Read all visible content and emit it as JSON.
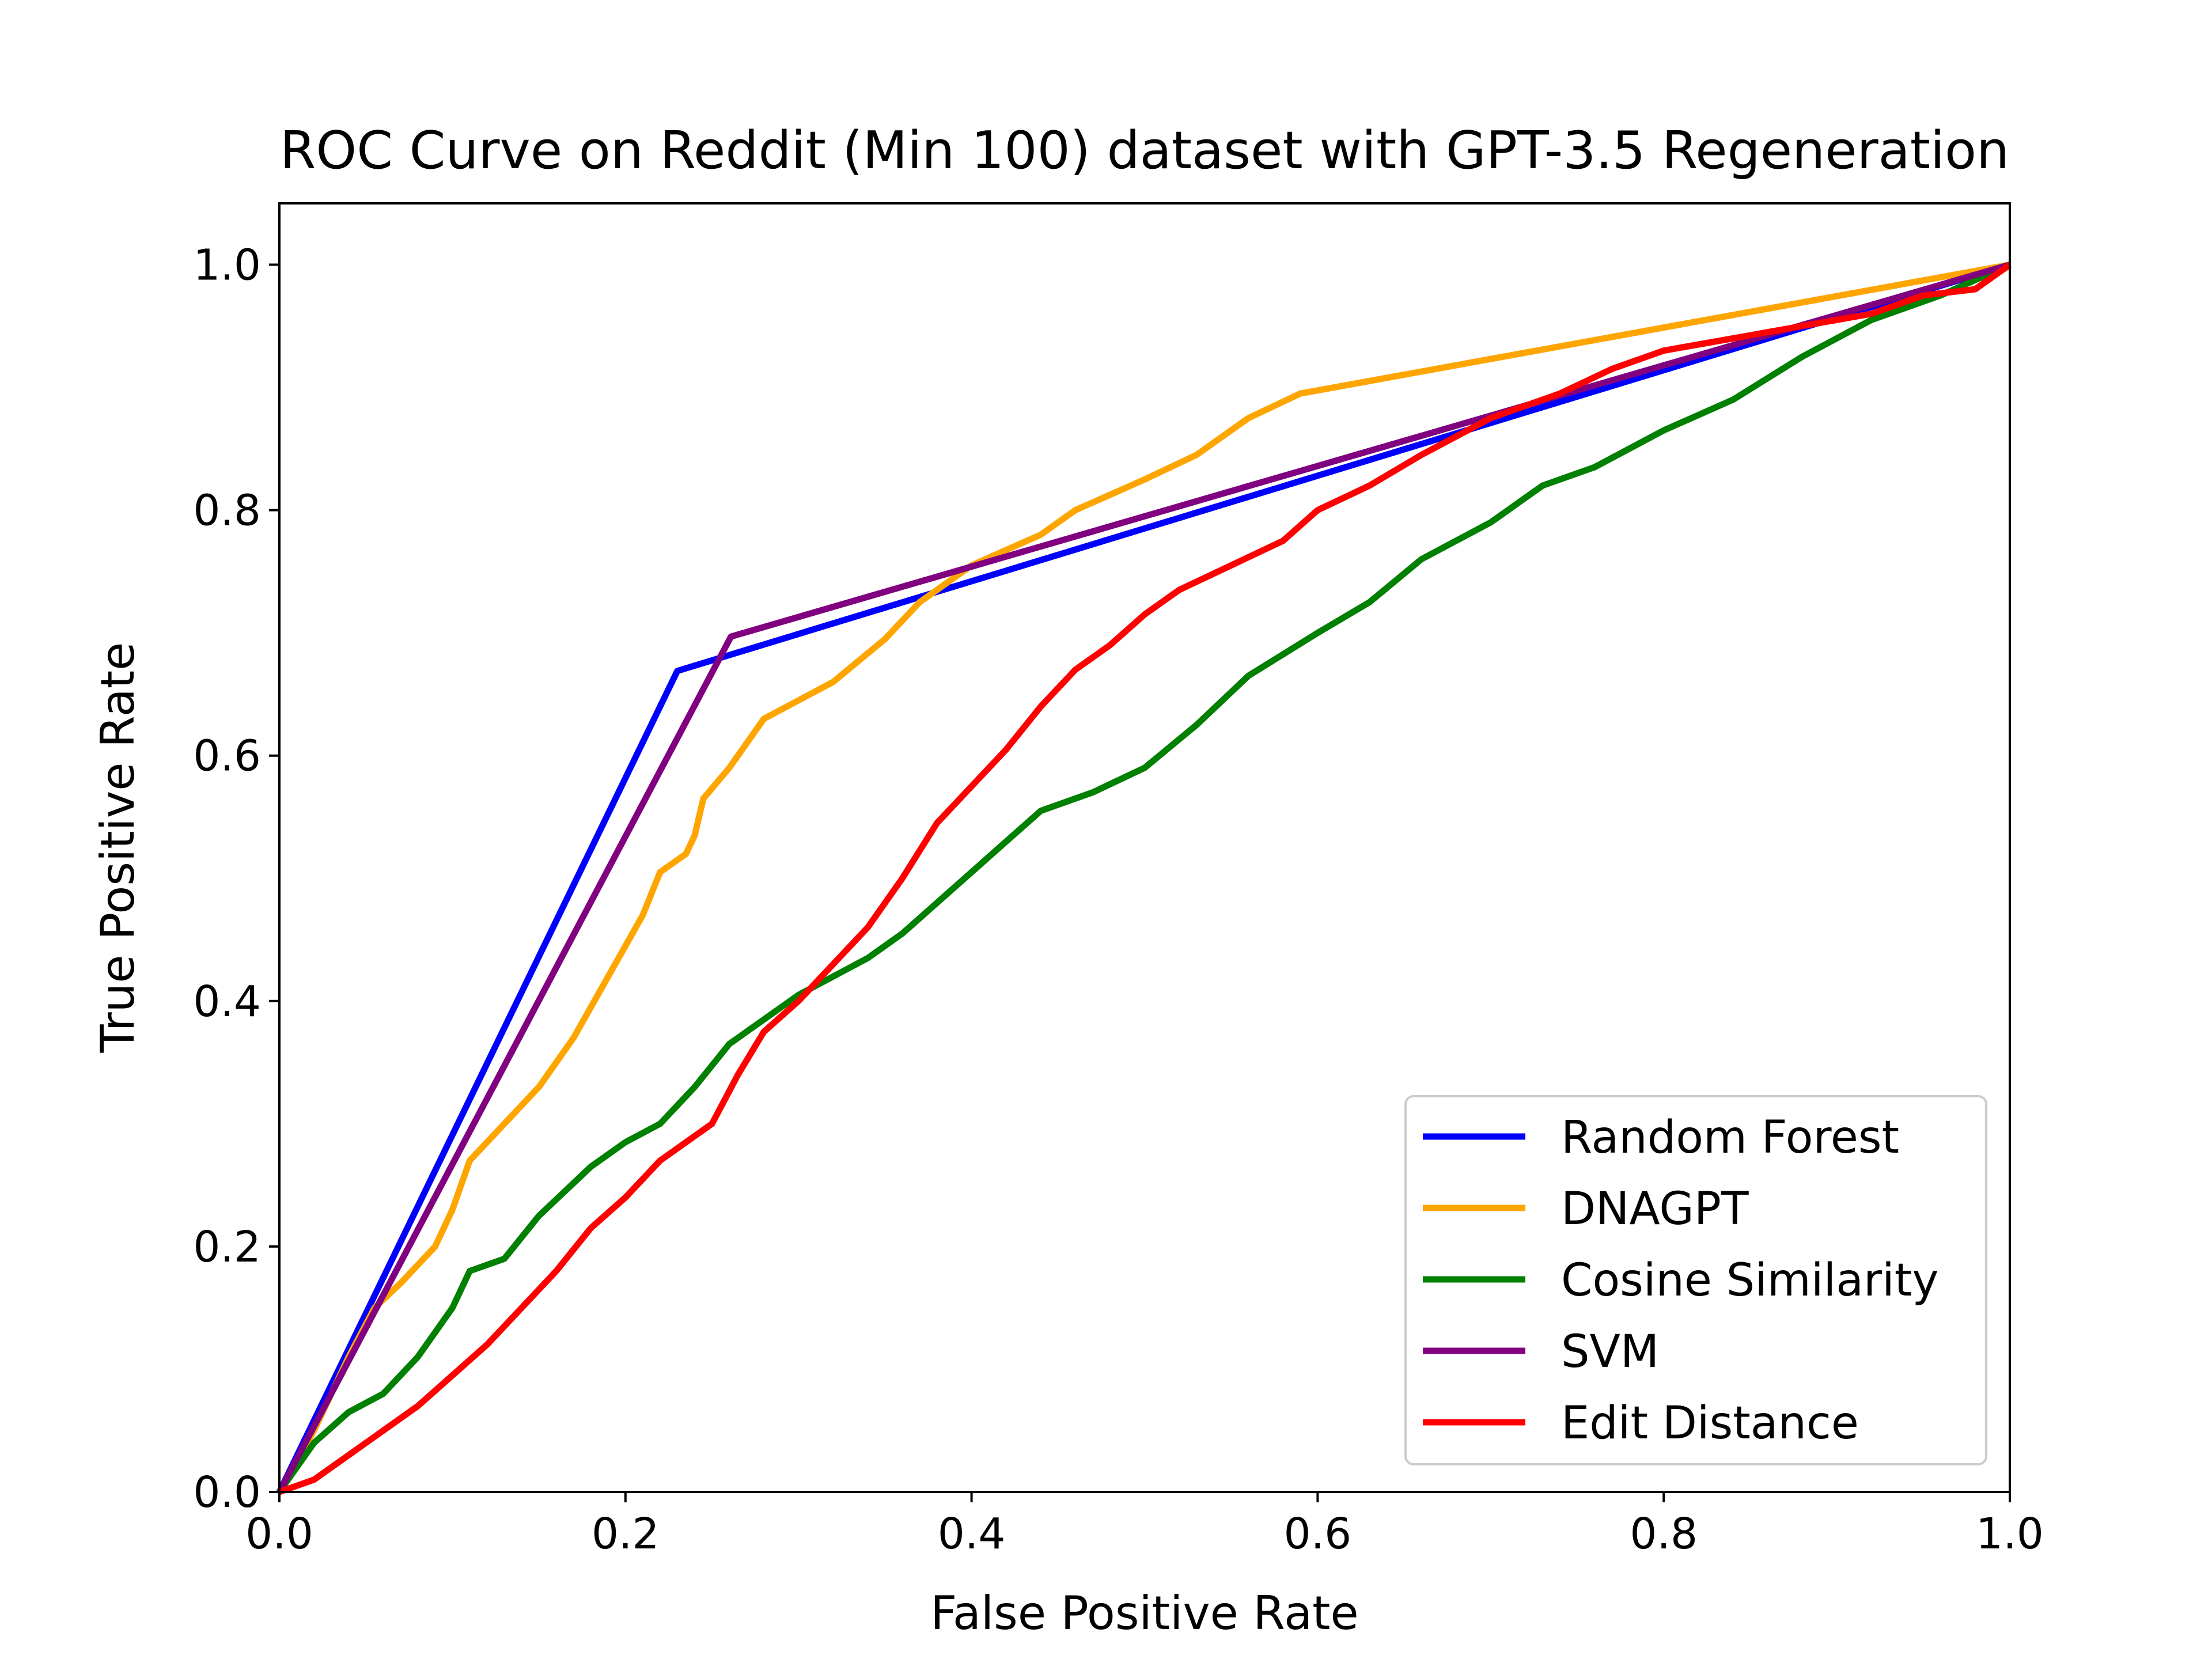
{
  "chart_data": {
    "type": "line",
    "title": "ROC Curve on Reddit (Min 100) dataset with GPT-3.5 Regeneration",
    "xlabel": "False Positive Rate",
    "ylabel": "True Positive Rate",
    "xlim": [
      0.0,
      1.0
    ],
    "ylim": [
      0.0,
      1.05
    ],
    "x_ticks": [
      "0.0",
      "0.2",
      "0.4",
      "0.6",
      "0.8",
      "1.0"
    ],
    "y_ticks": [
      "0.0",
      "0.2",
      "0.4",
      "0.6",
      "0.8",
      "1.0"
    ],
    "grid": false,
    "legend_position": "lower-right",
    "series": [
      {
        "name": "Random Forest",
        "color": "#0000ff",
        "points": [
          [
            0.0,
            0.0
          ],
          [
            0.23,
            0.669
          ],
          [
            1.0,
            1.0
          ]
        ]
      },
      {
        "name": "DNAGPT",
        "color": "#ffa500",
        "points": [
          [
            0.0,
            0.0
          ],
          [
            0.02,
            0.05
          ],
          [
            0.04,
            0.11
          ],
          [
            0.055,
            0.15
          ],
          [
            0.07,
            0.17
          ],
          [
            0.09,
            0.2
          ],
          [
            0.1,
            0.23
          ],
          [
            0.11,
            0.27
          ],
          [
            0.13,
            0.3
          ],
          [
            0.15,
            0.33
          ],
          [
            0.17,
            0.37
          ],
          [
            0.19,
            0.42
          ],
          [
            0.21,
            0.47
          ],
          [
            0.22,
            0.505
          ],
          [
            0.235,
            0.52
          ],
          [
            0.24,
            0.535
          ],
          [
            0.245,
            0.565
          ],
          [
            0.26,
            0.59
          ],
          [
            0.28,
            0.63
          ],
          [
            0.3,
            0.645
          ],
          [
            0.32,
            0.66
          ],
          [
            0.35,
            0.695
          ],
          [
            0.37,
            0.725
          ],
          [
            0.4,
            0.755
          ],
          [
            0.44,
            0.78
          ],
          [
            0.46,
            0.8
          ],
          [
            0.5,
            0.825
          ],
          [
            0.53,
            0.845
          ],
          [
            0.56,
            0.875
          ],
          [
            0.59,
            0.895
          ],
          [
            1.0,
            1.0
          ]
        ]
      },
      {
        "name": "Cosine Similarity",
        "color": "#008000",
        "points": [
          [
            0.0,
            0.0
          ],
          [
            0.02,
            0.04
          ],
          [
            0.04,
            0.065
          ],
          [
            0.06,
            0.08
          ],
          [
            0.08,
            0.11
          ],
          [
            0.1,
            0.15
          ],
          [
            0.11,
            0.18
          ],
          [
            0.13,
            0.19
          ],
          [
            0.15,
            0.225
          ],
          [
            0.18,
            0.265
          ],
          [
            0.2,
            0.285
          ],
          [
            0.22,
            0.3
          ],
          [
            0.24,
            0.33
          ],
          [
            0.26,
            0.365
          ],
          [
            0.28,
            0.385
          ],
          [
            0.3,
            0.405
          ],
          [
            0.32,
            0.42
          ],
          [
            0.34,
            0.435
          ],
          [
            0.36,
            0.455
          ],
          [
            0.38,
            0.48
          ],
          [
            0.4,
            0.505
          ],
          [
            0.42,
            0.53
          ],
          [
            0.44,
            0.555
          ],
          [
            0.47,
            0.57
          ],
          [
            0.5,
            0.59
          ],
          [
            0.53,
            0.625
          ],
          [
            0.56,
            0.665
          ],
          [
            0.6,
            0.7
          ],
          [
            0.63,
            0.725
          ],
          [
            0.66,
            0.76
          ],
          [
            0.7,
            0.79
          ],
          [
            0.73,
            0.82
          ],
          [
            0.76,
            0.835
          ],
          [
            0.8,
            0.865
          ],
          [
            0.84,
            0.89
          ],
          [
            0.88,
            0.925
          ],
          [
            0.92,
            0.955
          ],
          [
            0.96,
            0.975
          ],
          [
            1.0,
            1.0
          ]
        ]
      },
      {
        "name": "SVM",
        "color": "#800080",
        "points": [
          [
            0.0,
            0.0
          ],
          [
            0.261,
            0.697
          ],
          [
            1.0,
            1.0
          ]
        ]
      },
      {
        "name": "Edit Distance",
        "color": "#ff0000",
        "points": [
          [
            0.0,
            0.0
          ],
          [
            0.02,
            0.01
          ],
          [
            0.04,
            0.03
          ],
          [
            0.06,
            0.05
          ],
          [
            0.08,
            0.07
          ],
          [
            0.1,
            0.095
          ],
          [
            0.12,
            0.12
          ],
          [
            0.14,
            0.15
          ],
          [
            0.16,
            0.18
          ],
          [
            0.18,
            0.215
          ],
          [
            0.2,
            0.24
          ],
          [
            0.22,
            0.27
          ],
          [
            0.25,
            0.3
          ],
          [
            0.265,
            0.34
          ],
          [
            0.28,
            0.375
          ],
          [
            0.3,
            0.4
          ],
          [
            0.32,
            0.43
          ],
          [
            0.34,
            0.46
          ],
          [
            0.36,
            0.5
          ],
          [
            0.38,
            0.545
          ],
          [
            0.4,
            0.575
          ],
          [
            0.42,
            0.605
          ],
          [
            0.44,
            0.64
          ],
          [
            0.46,
            0.67
          ],
          [
            0.48,
            0.69
          ],
          [
            0.5,
            0.715
          ],
          [
            0.52,
            0.735
          ],
          [
            0.55,
            0.755
          ],
          [
            0.58,
            0.775
          ],
          [
            0.6,
            0.8
          ],
          [
            0.63,
            0.82
          ],
          [
            0.66,
            0.845
          ],
          [
            0.7,
            0.875
          ],
          [
            0.74,
            0.895
          ],
          [
            0.77,
            0.915
          ],
          [
            0.8,
            0.93
          ],
          [
            0.84,
            0.94
          ],
          [
            0.88,
            0.95
          ],
          [
            0.92,
            0.96
          ],
          [
            0.95,
            0.975
          ],
          [
            0.98,
            0.98
          ],
          [
            1.0,
            1.0
          ]
        ]
      }
    ]
  }
}
